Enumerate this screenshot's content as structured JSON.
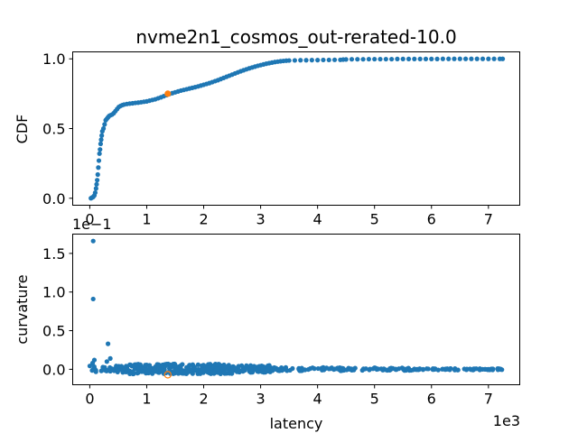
{
  "figure": {
    "title": "nvme2n1_cosmos_out-rerated-10.0"
  },
  "colors": {
    "series": "#1f77b4",
    "highlight": "#ff7f0e",
    "axes": "#000000",
    "background": "#ffffff"
  },
  "chart_data": [
    {
      "type": "scatter",
      "title": "nvme2n1_cosmos_out-rerated-10.0",
      "xlabel": "",
      "ylabel": "CDF",
      "xlim": [
        -300,
        7550
      ],
      "ylim": [
        -0.05,
        1.05
      ],
      "x_ticks": [
        0,
        1000,
        2000,
        3000,
        4000,
        5000,
        6000,
        7000
      ],
      "x_tick_labels": [
        "0",
        "1",
        "2",
        "3",
        "4",
        "5",
        "6",
        "7"
      ],
      "y_ticks": [
        0.0,
        0.5,
        1.0
      ],
      "y_tick_labels": [
        "0.0",
        "0.5",
        "1.0"
      ],
      "grid": false,
      "legend": "none",
      "series": [
        {
          "marker": "filled-circle",
          "color": "#1f77b4",
          "points": [
            [
              20,
              0.0
            ],
            [
              40,
              0.005
            ],
            [
              60,
              0.01
            ],
            [
              80,
              0.02
            ],
            [
              95,
              0.04
            ],
            [
              110,
              0.07
            ],
            [
              120,
              0.1
            ],
            [
              130,
              0.13
            ],
            [
              140,
              0.17
            ],
            [
              150,
              0.22
            ],
            [
              160,
              0.27
            ],
            [
              170,
              0.32
            ],
            [
              180,
              0.35
            ],
            [
              190,
              0.39
            ],
            [
              200,
              0.42
            ],
            [
              210,
              0.45
            ],
            [
              220,
              0.48
            ],
            [
              240,
              0.5
            ],
            [
              260,
              0.53
            ],
            [
              280,
              0.56
            ],
            [
              300,
              0.57
            ],
            [
              320,
              0.58
            ],
            [
              340,
              0.59
            ],
            [
              360,
              0.595
            ],
            [
              390,
              0.6
            ],
            [
              420,
              0.61
            ],
            [
              450,
              0.625
            ],
            [
              480,
              0.64
            ],
            [
              510,
              0.655
            ],
            [
              540,
              0.662
            ],
            [
              570,
              0.668
            ],
            [
              600,
              0.672
            ],
            [
              650,
              0.676
            ],
            [
              700,
              0.679
            ],
            [
              750,
              0.681
            ],
            [
              800,
              0.684
            ],
            [
              850,
              0.686
            ],
            [
              900,
              0.689
            ],
            [
              950,
              0.692
            ],
            [
              1000,
              0.695
            ],
            [
              1050,
              0.7
            ],
            [
              1100,
              0.705
            ],
            [
              1150,
              0.71
            ],
            [
              1200,
              0.717
            ],
            [
              1250,
              0.724
            ],
            [
              1300,
              0.732
            ],
            [
              1350,
              0.74
            ],
            [
              1400,
              0.748
            ],
            [
              1450,
              0.754
            ],
            [
              1500,
              0.76
            ],
            [
              1550,
              0.766
            ],
            [
              1600,
              0.772
            ],
            [
              1650,
              0.777
            ],
            [
              1700,
              0.782
            ],
            [
              1750,
              0.787
            ],
            [
              1800,
              0.792
            ],
            [
              1850,
              0.797
            ],
            [
              1900,
              0.802
            ],
            [
              1950,
              0.808
            ],
            [
              2000,
              0.814
            ],
            [
              2050,
              0.82
            ],
            [
              2100,
              0.826
            ],
            [
              2150,
              0.833
            ],
            [
              2200,
              0.84
            ],
            [
              2250,
              0.847
            ],
            [
              2300,
              0.855
            ],
            [
              2350,
              0.863
            ],
            [
              2400,
              0.871
            ],
            [
              2450,
              0.879
            ],
            [
              2500,
              0.887
            ],
            [
              2550,
              0.895
            ],
            [
              2600,
              0.903
            ],
            [
              2650,
              0.911
            ],
            [
              2700,
              0.918
            ],
            [
              2750,
              0.925
            ],
            [
              2800,
              0.932
            ],
            [
              2850,
              0.938
            ],
            [
              2900,
              0.944
            ],
            [
              2950,
              0.95
            ],
            [
              3000,
              0.955
            ],
            [
              3050,
              0.96
            ],
            [
              3100,
              0.965
            ],
            [
              3150,
              0.969
            ],
            [
              3200,
              0.973
            ],
            [
              3250,
              0.977
            ],
            [
              3300,
              0.98
            ],
            [
              3350,
              0.983
            ],
            [
              3400,
              0.985
            ],
            [
              3450,
              0.987
            ],
            [
              3500,
              0.988
            ],
            [
              3600,
              0.989
            ],
            [
              3700,
              0.99
            ],
            [
              3800,
              0.99
            ],
            [
              3900,
              0.991
            ],
            [
              4000,
              0.991
            ],
            [
              4100,
              0.992
            ],
            [
              4200,
              0.992
            ],
            [
              4300,
              0.993
            ],
            [
              4400,
              0.993
            ],
            [
              4450,
              0.995
            ],
            [
              4500,
              0.996
            ],
            [
              4600,
              0.997
            ],
            [
              4700,
              0.997
            ],
            [
              4800,
              0.997
            ],
            [
              4900,
              0.998
            ],
            [
              5000,
              0.998
            ],
            [
              5100,
              0.998
            ],
            [
              5200,
              0.998
            ],
            [
              5300,
              0.998
            ],
            [
              5400,
              0.999
            ],
            [
              5500,
              0.999
            ],
            [
              5600,
              0.999
            ],
            [
              5700,
              0.999
            ],
            [
              5800,
              0.999
            ],
            [
              5900,
              0.999
            ],
            [
              6000,
              0.999
            ],
            [
              6100,
              0.999
            ],
            [
              6200,
              1.0
            ],
            [
              6300,
              1.0
            ],
            [
              6400,
              1.0
            ],
            [
              6500,
              1.0
            ],
            [
              6600,
              1.0
            ],
            [
              6700,
              1.0
            ],
            [
              6800,
              1.0
            ],
            [
              6900,
              1.0
            ],
            [
              7000,
              1.0
            ],
            [
              7100,
              1.0
            ],
            [
              7200,
              1.0
            ],
            [
              7250,
              1.0
            ]
          ]
        },
        {
          "marker": "filled-circle",
          "color": "#ff7f0e",
          "points": [
            [
              1370,
              0.75
            ]
          ]
        }
      ]
    },
    {
      "type": "scatter",
      "title": "",
      "xlabel": "latency",
      "ylabel": "curvature",
      "x_scale_label": "1e3",
      "y_scale_label": "1e−1",
      "xlim": [
        -300,
        7550
      ],
      "ylim": [
        -0.2,
        1.75
      ],
      "x_ticks": [
        0,
        1000,
        2000,
        3000,
        4000,
        5000,
        6000,
        7000
      ],
      "x_tick_labels": [
        "0",
        "1",
        "2",
        "3",
        "4",
        "5",
        "6",
        "7"
      ],
      "y_ticks": [
        0.0,
        0.5,
        1.0,
        1.5
      ],
      "y_tick_labels": [
        "0.0",
        "0.5",
        "1.0",
        "1.5"
      ],
      "grid": false,
      "legend": "none",
      "series": [
        {
          "marker": "filled-circle",
          "color": "#1f77b4",
          "outliers": [
            [
              60,
              1.66
            ],
            [
              60,
              0.91
            ],
            [
              80,
              0.12
            ],
            [
              50,
              0.08
            ],
            [
              320,
              0.33
            ],
            [
              360,
              0.14
            ],
            [
              300,
              0.1
            ],
            [
              580,
              -0.04
            ]
          ],
          "bands": [
            {
              "x_from": 0,
              "x_to": 700,
              "ymin": -0.04,
              "ymax": 0.05,
              "count": 45
            },
            {
              "x_from": 700,
              "x_to": 1500,
              "ymin": -0.06,
              "ymax": 0.07,
              "count": 110
            },
            {
              "x_from": 1500,
              "x_to": 2500,
              "ymin": -0.06,
              "ymax": 0.07,
              "count": 140
            },
            {
              "x_from": 2500,
              "x_to": 3200,
              "ymin": -0.04,
              "ymax": 0.05,
              "count": 80
            },
            {
              "x_from": 3200,
              "x_to": 4500,
              "ymin": -0.02,
              "ymax": 0.025,
              "count": 70
            },
            {
              "x_from": 4500,
              "x_to": 5700,
              "ymin": -0.015,
              "ymax": 0.02,
              "count": 55
            },
            {
              "x_from": 5700,
              "x_to": 7250,
              "ymin": -0.01,
              "ymax": 0.01,
              "count": 70
            }
          ]
        },
        {
          "marker": "open-circle",
          "color": "#ff7f0e",
          "points": [
            [
              1370,
              -0.07
            ]
          ]
        }
      ]
    }
  ]
}
